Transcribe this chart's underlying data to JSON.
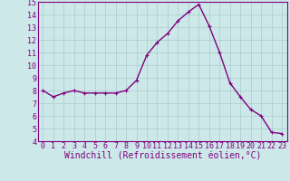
{
  "x": [
    0,
    1,
    2,
    3,
    4,
    5,
    6,
    7,
    8,
    9,
    10,
    11,
    12,
    13,
    14,
    15,
    16,
    17,
    18,
    19,
    20,
    21,
    22,
    23
  ],
  "y": [
    8.0,
    7.5,
    7.8,
    8.0,
    7.8,
    7.8,
    7.8,
    7.8,
    8.0,
    8.8,
    10.8,
    11.8,
    12.5,
    13.5,
    14.2,
    14.8,
    13.1,
    11.0,
    8.6,
    7.5,
    6.5,
    6.0,
    4.7,
    4.6
  ],
  "line_color": "#800080",
  "marker": "+",
  "marker_size": 3,
  "bg_color": "#cce8e8",
  "grid_color": "#aacccc",
  "xlabel": "Windchill (Refroidissement éolien,°C)",
  "xlabel_color": "#800080",
  "tick_color": "#800080",
  "ylim": [
    4,
    15
  ],
  "xlim": [
    -0.5,
    23.5
  ],
  "yticks": [
    4,
    5,
    6,
    7,
    8,
    9,
    10,
    11,
    12,
    13,
    14,
    15
  ],
  "xticks": [
    0,
    1,
    2,
    3,
    4,
    5,
    6,
    7,
    8,
    9,
    10,
    11,
    12,
    13,
    14,
    15,
    16,
    17,
    18,
    19,
    20,
    21,
    22,
    23
  ],
  "xlabel_fontsize": 7,
  "tick_fontsize": 6,
  "spine_color": "#800080",
  "line_width": 1.0,
  "marker_edge_width": 0.8
}
